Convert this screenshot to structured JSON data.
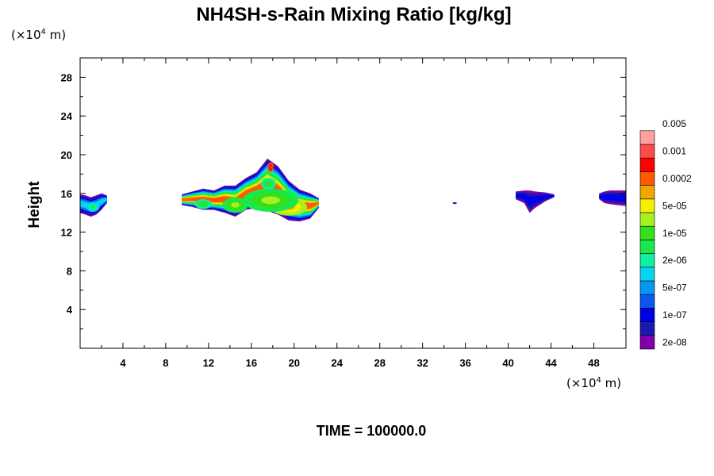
{
  "chart_data": {
    "type": "heatmap",
    "title": "NH4SH-s-Rain Mixing Ratio [kg/kg]",
    "ylabel": "Height",
    "x_unit": {
      "prefix": "(×10",
      "exp": "4",
      "suffix": " m)"
    },
    "y_unit": {
      "prefix": "(×10",
      "exp": "4",
      "suffix": " m)"
    },
    "xlim": [
      0,
      51
    ],
    "ylim": [
      0,
      30
    ],
    "x_ticks": [
      4,
      8,
      12,
      16,
      20,
      24,
      28,
      32,
      36,
      40,
      44,
      48
    ],
    "y_ticks": [
      4,
      8,
      12,
      16,
      20,
      24,
      28
    ],
    "x_tick_labels": [
      "4",
      "8",
      "12",
      "16",
      "20",
      "24",
      "28",
      "32",
      "36",
      "40",
      "44",
      "48"
    ],
    "y_tick_labels": [
      "4",
      "8",
      "12",
      "16",
      "20",
      "24",
      "28"
    ],
    "colorbar": {
      "colors": [
        "#7f00aa",
        "#1a1ab0",
        "#0000e6",
        "#0b57f0",
        "#0896ee",
        "#07d4f0",
        "#0ff0a0",
        "#18e94a",
        "#34e01c",
        "#a8f020",
        "#f0f000",
        "#f0a800",
        "#ff5a00",
        "#ff0000",
        "#ff4a4a",
        "#ffa0a0"
      ],
      "labels": [
        "2e-08",
        "1e-07",
        "5e-07",
        "2e-06",
        "1e-05",
        "5e-05",
        "0.0002",
        "0.001",
        "0.005"
      ],
      "label_level_index": [
        1,
        3,
        5,
        7,
        9,
        11,
        13,
        15,
        17
      ],
      "level_count": 16
    },
    "regions": [
      {
        "xs": [
          0.0,
          0.5,
          1.0,
          1.5,
          2.0,
          2.5
        ],
        "bot": [
          14.0,
          13.8,
          13.6,
          13.8,
          14.3,
          15.0
        ],
        "top": [
          15.9,
          15.8,
          15.6,
          15.8,
          16.0,
          15.8
        ],
        "peak": 5
      },
      {
        "xs": [
          9.5,
          10.5,
          11.5,
          12.5,
          13.5,
          14.5,
          15.5,
          16.5,
          17.5,
          18.5,
          19.5,
          20.5,
          21.5,
          22.3
        ],
        "bot": [
          14.8,
          14.6,
          14.3,
          14.3,
          14.0,
          13.6,
          14.3,
          14.5,
          14.2,
          13.8,
          13.2,
          13.1,
          13.4,
          14.5
        ],
        "top": [
          15.9,
          16.2,
          16.5,
          16.3,
          16.8,
          16.8,
          17.6,
          18.2,
          19.6,
          18.8,
          17.3,
          16.4,
          16.0,
          15.5
        ],
        "peak": 12
      },
      {
        "xs": [
          40.7,
          41.5,
          42.0,
          42.5,
          43.5,
          44.3
        ],
        "bot": [
          15.4,
          15.0,
          14.0,
          14.5,
          15.2,
          15.6
        ],
        "top": [
          16.2,
          16.3,
          16.3,
          16.2,
          16.1,
          15.9
        ],
        "peak": 2
      },
      {
        "xs": [
          48.5,
          49.0,
          49.5,
          50.2,
          51.0
        ],
        "bot": [
          15.4,
          15.0,
          14.9,
          14.8,
          14.7
        ],
        "top": [
          16.0,
          16.2,
          16.3,
          16.3,
          16.3
        ],
        "peak": 2
      }
    ],
    "hotspots": [
      {
        "x": 20.0,
        "y": 14.3,
        "rx": 0.9,
        "ry": 0.55,
        "level": 13
      },
      {
        "x": 19.5,
        "y": 14.6,
        "rx": 1.7,
        "ry": 0.9,
        "level": 11
      },
      {
        "x": 17.8,
        "y": 15.3,
        "rx": 2.6,
        "ry": 1.2,
        "level": 9
      },
      {
        "x": 14.5,
        "y": 14.8,
        "rx": 1.2,
        "ry": 0.8,
        "level": 9
      },
      {
        "x": 11.5,
        "y": 14.9,
        "rx": 0.8,
        "ry": 0.5,
        "level": 8
      },
      {
        "x": 17.6,
        "y": 17.0,
        "rx": 0.7,
        "ry": 0.6,
        "level": 8
      },
      {
        "x": 17.8,
        "y": 18.7,
        "rx": 0.3,
        "ry": 0.5,
        "level": 14
      },
      {
        "x": 1.2,
        "y": 14.6,
        "rx": 0.6,
        "ry": 0.5,
        "level": 7
      },
      {
        "x": 35.0,
        "y": 15.0,
        "rx": 0.2,
        "ry": 0.1,
        "level": 1
      }
    ]
  },
  "time_caption": "TIME = 100000.0"
}
